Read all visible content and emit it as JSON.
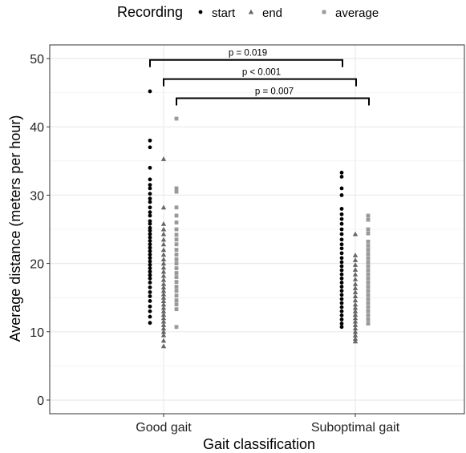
{
  "chart_data": {
    "type": "scatter",
    "title": "",
    "xlabel": "Gait classification",
    "ylabel": "Average distance (meters per hour)",
    "categories": [
      "Good gait",
      "Suboptimal gait"
    ],
    "ylim": [
      -2,
      52
    ],
    "yticks": [
      0,
      10,
      20,
      30,
      40,
      50
    ],
    "grid": true,
    "legend": {
      "title": "Recording",
      "position": "top",
      "entries": [
        "start",
        "end",
        "average"
      ]
    },
    "series": [
      {
        "name": "start",
        "marker": "circle",
        "color": "#000000",
        "points": [
          {
            "category": "Good gait",
            "values": [
              45.2,
              38.0,
              37.0,
              34.0,
              32.3,
              31.5,
              31.0,
              30.2,
              29.5,
              29.0,
              28.2,
              27.5,
              27.0,
              26.2,
              25.8,
              25.2,
              24.8,
              24.3,
              23.8,
              23.3,
              22.8,
              22.3,
              21.8,
              21.3,
              20.8,
              20.3,
              19.8,
              19.3,
              18.8,
              18.3,
              17.8,
              17.2,
              16.5,
              15.8,
              15.2,
              14.5,
              13.7,
              13.0,
              12.2,
              11.3
            ]
          },
          {
            "category": "Suboptimal gait",
            "values": [
              33.3,
              32.7,
              31.0,
              30.0,
              28.0,
              27.2,
              26.5,
              25.8,
              25.0,
              24.3,
              23.5,
              22.8,
              22.2,
              21.5,
              20.8,
              20.2,
              19.6,
              19.0,
              18.4,
              17.8,
              17.2,
              16.6,
              16.0,
              15.4,
              14.8,
              14.2,
              13.6,
              13.0,
              12.4,
              11.8,
              11.2,
              10.7
            ]
          }
        ]
      },
      {
        "name": "end",
        "marker": "triangle",
        "color": "#666666",
        "points": [
          {
            "category": "Good gait",
            "values": [
              35.3,
              28.2,
              25.8,
              25.0,
              24.3,
              23.5,
              22.8,
              22.0,
              21.3,
              20.6,
              20.0,
              19.4,
              18.8,
              18.2,
              17.6,
              17.0,
              16.5,
              16.0,
              15.5,
              15.0,
              14.5,
              14.0,
              13.5,
              13.0,
              12.5,
              12.0,
              11.5,
              11.0,
              10.5,
              10.0,
              9.5,
              8.7,
              7.9
            ]
          },
          {
            "category": "Suboptimal gait",
            "values": [
              24.3,
              21.2,
              20.5,
              19.8,
              19.1,
              18.4,
              17.7,
              17.0,
              16.4,
              15.8,
              15.2,
              14.6,
              14.0,
              13.5,
              13.0,
              12.5,
              12.0,
              11.5,
              11.0,
              10.5,
              10.0,
              9.5,
              9.0,
              8.6
            ]
          }
        ]
      },
      {
        "name": "average",
        "marker": "square",
        "color": "#999999",
        "points": [
          {
            "category": "Good gait",
            "values": [
              41.2,
              31.0,
              30.5,
              28.2,
              27.0,
              26.0,
              25.0,
              24.2,
              23.5,
              22.8,
              22.0,
              21.3,
              20.6,
              20.0,
              19.3,
              18.6,
              18.0,
              17.3,
              16.6,
              16.0,
              15.3,
              14.6,
              14.0,
              13.3,
              10.7
            ]
          },
          {
            "category": "Suboptimal gait",
            "values": [
              27.0,
              26.4,
              25.0,
              24.4,
              23.2,
              22.6,
              22.0,
              21.4,
              20.8,
              20.2,
              19.6,
              19.0,
              18.4,
              17.8,
              17.2,
              16.6,
              16.0,
              15.4,
              14.8,
              14.2,
              13.6,
              13.0,
              12.4,
              11.8,
              11.2
            ]
          }
        ]
      }
    ],
    "annotations": [
      {
        "text": "p = 0.019",
        "from_series": "start",
        "to_series": "start",
        "y": 49.8
      },
      {
        "text": "p < 0.001",
        "from_series": "end",
        "to_series": "end",
        "y": 47.0
      },
      {
        "text": "p = 0.007",
        "from_series": "average",
        "to_series": "average",
        "y": 44.2
      }
    ]
  },
  "colors": {
    "axis": "#333333",
    "grid": "#ebebeb",
    "panel_border": "#333333",
    "text": "#000000",
    "tick_text": "#222222"
  }
}
